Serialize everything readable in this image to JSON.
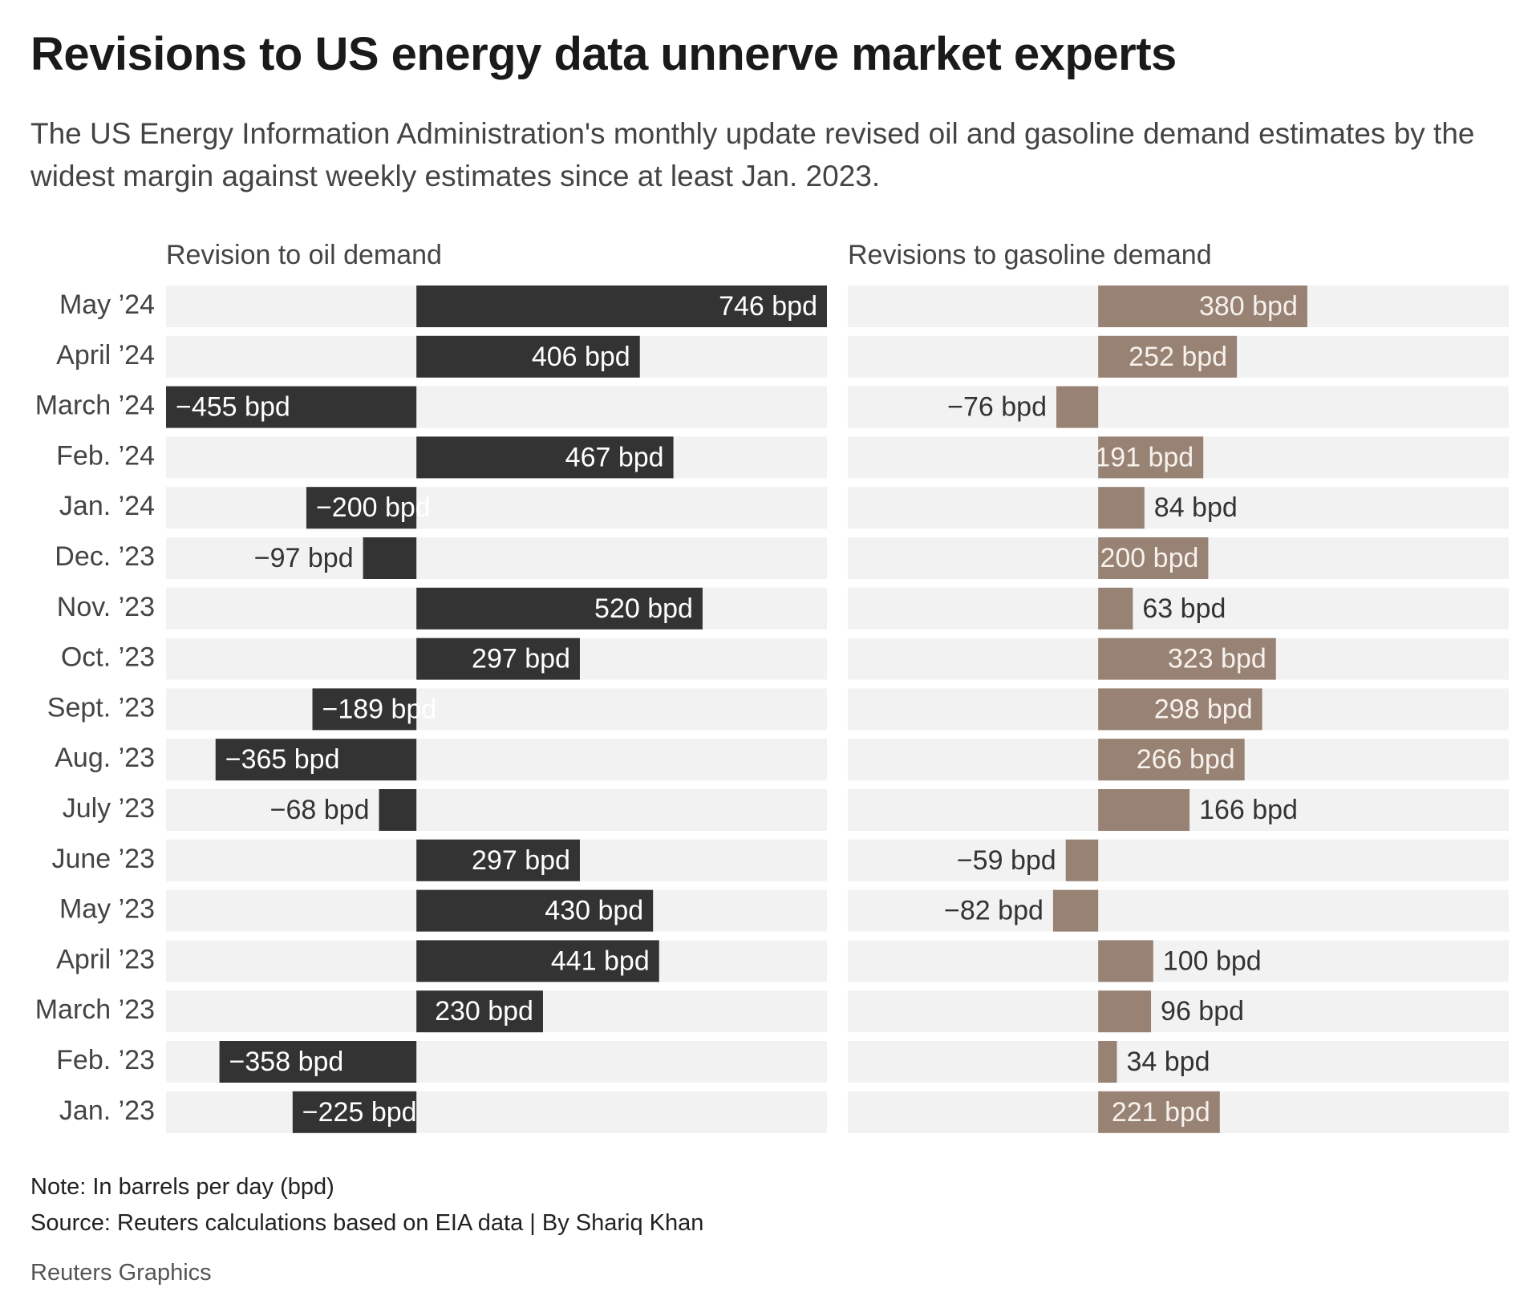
{
  "title": "Revisions to US energy data unnerve market experts",
  "subtitle": "The US Energy Information Administration's monthly update revised oil and gasoline demand estimates by the widest margin against weekly estimates since at least Jan. 2023.",
  "note": "Note: In barrels per day (bpd)",
  "source": "Source: Reuters calculations based on EIA data | By Shariq Khan",
  "credit": "Reuters Graphics",
  "chart_data": {
    "type": "bar",
    "orientation": "horizontal",
    "categories": [
      "May ’24",
      "April ’24",
      "March ’24",
      "Feb. ’24",
      "Jan. ’24",
      "Dec. ’23",
      "Nov. ’23",
      "Oct. ’23",
      "Sept. ’23",
      "Aug. ’23",
      "July ’23",
      "June ’23",
      "May ’23",
      "April ’23",
      "March ’23",
      "Feb. ’23",
      "Jan. ’23"
    ],
    "xlim": [
      -455,
      746
    ],
    "series": [
      {
        "name": "Revision to oil demand",
        "color": "#333333",
        "values": [
          746,
          406,
          -455,
          467,
          -200,
          -97,
          520,
          297,
          -189,
          -365,
          -68,
          297,
          430,
          441,
          230,
          -358,
          -225
        ],
        "value_labels": [
          "746 bpd",
          "406 bpd",
          "−455 bpd",
          "467 bpd",
          "−200 bpd",
          "−97 bpd",
          "520 bpd",
          "297 bpd",
          "−189 bpd",
          "−365 bpd",
          "−68 bpd",
          "297 bpd",
          "430 bpd",
          "441 bpd",
          "230 bpd",
          "−358 bpd",
          "−225 bpd"
        ]
      },
      {
        "name": "Revisions to gasoline demand",
        "color": "#978274",
        "values": [
          380,
          252,
          -76,
          191,
          84,
          200,
          63,
          323,
          298,
          266,
          166,
          -59,
          -82,
          100,
          96,
          34,
          221
        ],
        "value_labels": [
          "380 bpd",
          "252 bpd",
          "−76 bpd",
          "191 bpd",
          "84 bpd",
          "200 bpd",
          "63 bpd",
          "323 bpd",
          "298 bpd",
          "266 bpd",
          "166 bpd",
          "−59 bpd",
          "−82 bpd",
          "100 bpd",
          "96 bpd",
          "34 bpd",
          "221 bpd"
        ]
      }
    ]
  }
}
